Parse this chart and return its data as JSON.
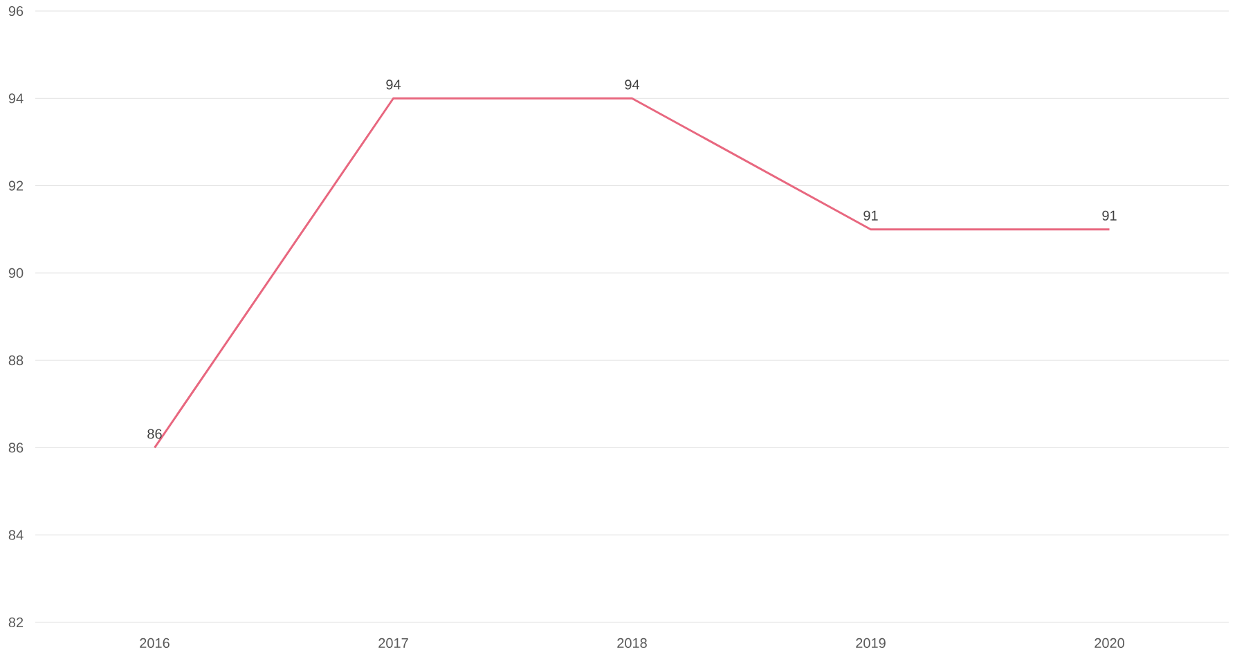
{
  "chart_data": {
    "type": "line",
    "categories": [
      "2016",
      "2017",
      "2018",
      "2019",
      "2020"
    ],
    "values": [
      86,
      94,
      94,
      91,
      91
    ],
    "color": "#e8677f",
    "ylim": [
      82,
      96
    ],
    "yticks": [
      82,
      84,
      86,
      88,
      90,
      92,
      94,
      96
    ],
    "grid": "y",
    "data_labels": true,
    "marker": "none",
    "line_style": "solid"
  }
}
